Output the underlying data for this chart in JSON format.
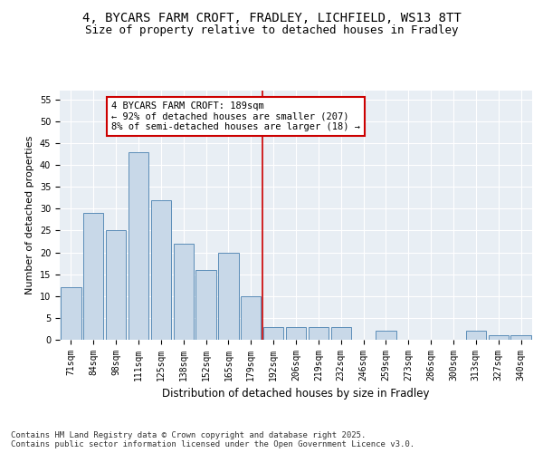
{
  "title_line1": "4, BYCARS FARM CROFT, FRADLEY, LICHFIELD, WS13 8TT",
  "title_line2": "Size of property relative to detached houses in Fradley",
  "xlabel": "Distribution of detached houses by size in Fradley",
  "ylabel": "Number of detached properties",
  "categories": [
    "71sqm",
    "84sqm",
    "98sqm",
    "111sqm",
    "125sqm",
    "138sqm",
    "152sqm",
    "165sqm",
    "179sqm",
    "192sqm",
    "206sqm",
    "219sqm",
    "232sqm",
    "246sqm",
    "259sqm",
    "273sqm",
    "286sqm",
    "300sqm",
    "313sqm",
    "327sqm",
    "340sqm"
  ],
  "values": [
    12,
    29,
    25,
    43,
    32,
    22,
    16,
    20,
    10,
    3,
    3,
    3,
    3,
    0,
    2,
    0,
    0,
    0,
    2,
    1,
    1
  ],
  "bar_color": "#c8d8e8",
  "bar_edge_color": "#5b8db8",
  "vline_x": 8.5,
  "vline_color": "#cc0000",
  "annotation_text": "4 BYCARS FARM CROFT: 189sqm\n← 92% of detached houses are smaller (207)\n8% of semi-detached houses are larger (18) →",
  "annotation_box_color": "#cc0000",
  "ylim": [
    0,
    57
  ],
  "yticks": [
    0,
    5,
    10,
    15,
    20,
    25,
    30,
    35,
    40,
    45,
    50,
    55
  ],
  "background_color": "#e8eef4",
  "grid_color": "#ffffff",
  "footer_text": "Contains HM Land Registry data © Crown copyright and database right 2025.\nContains public sector information licensed under the Open Government Licence v3.0.",
  "title_fontsize": 10,
  "subtitle_fontsize": 9,
  "xlabel_fontsize": 8.5,
  "ylabel_fontsize": 8,
  "tick_fontsize": 7,
  "annotation_fontsize": 7.5,
  "footer_fontsize": 6.5
}
